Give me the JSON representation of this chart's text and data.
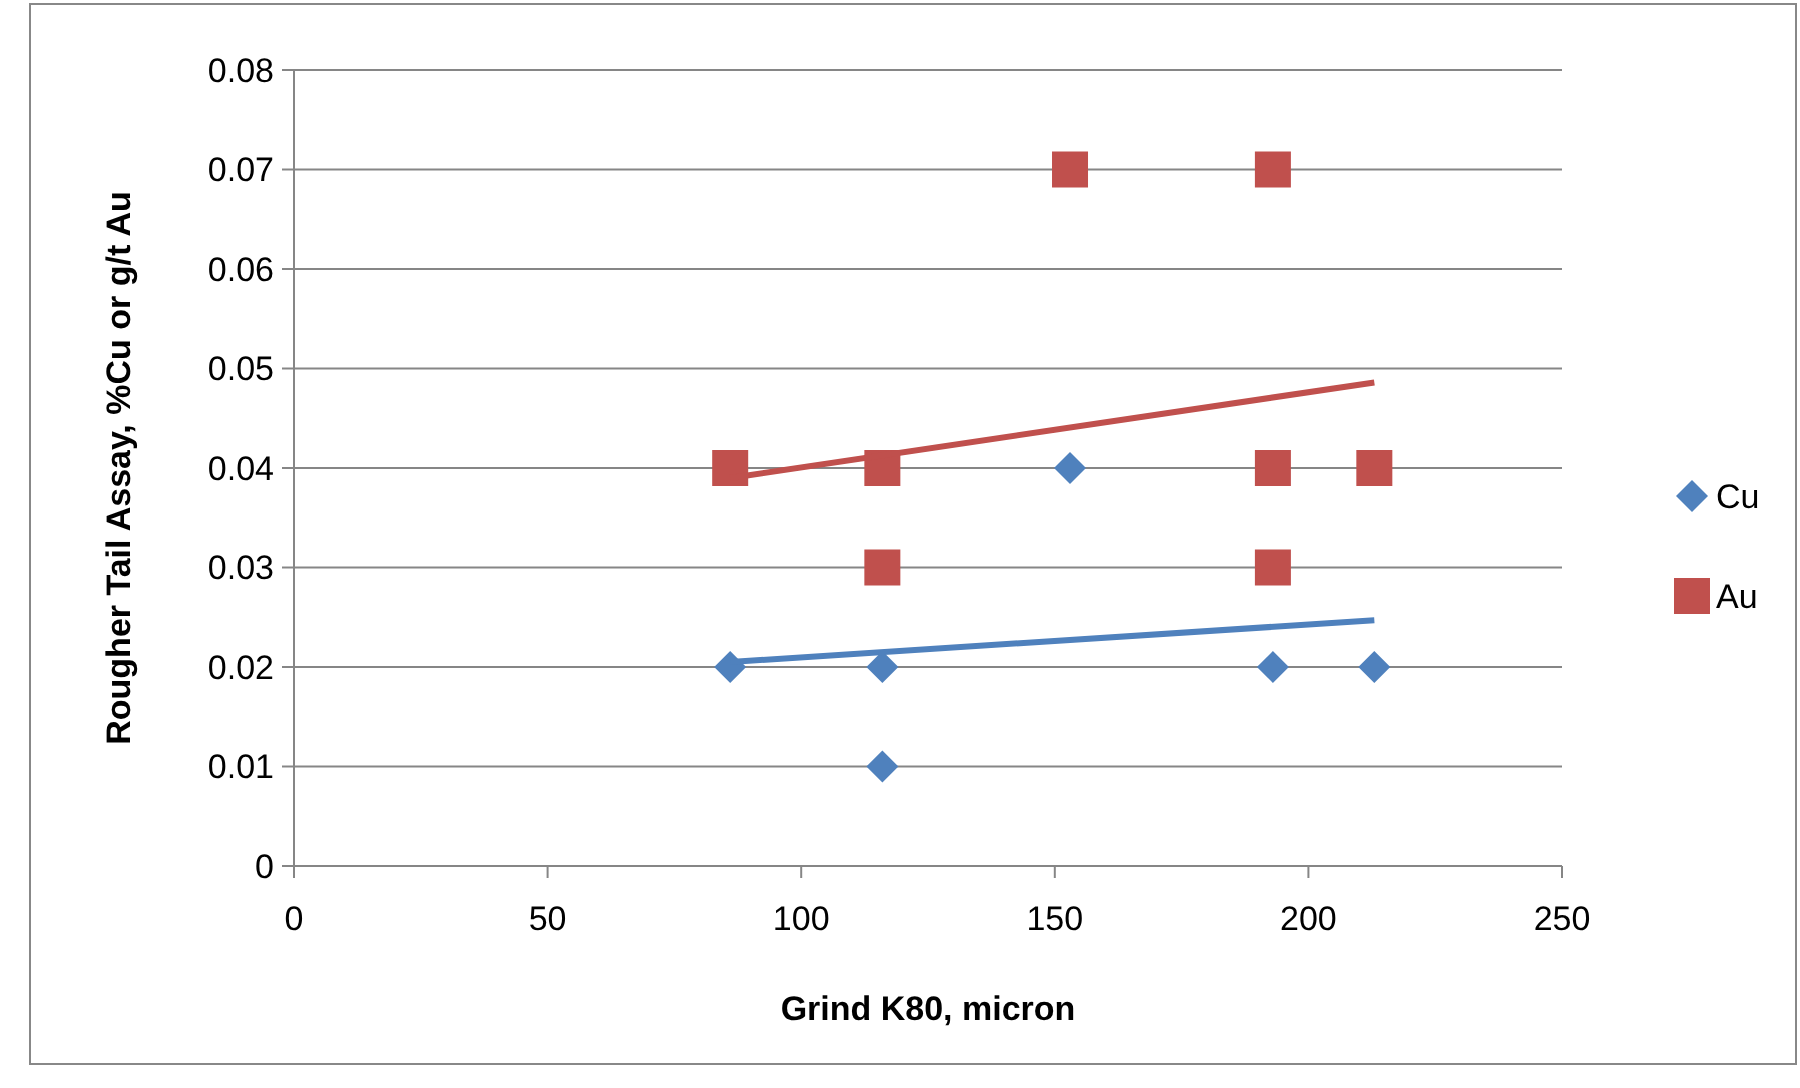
{
  "chart_data": {
    "type": "scatter",
    "xlabel": "Grind K80, micron",
    "ylabel": "Rougher Tail Assay, %Cu or g/t Au",
    "series": [
      {
        "name": "Cu",
        "color": "#4f81bd",
        "marker": "diamond",
        "x": [
          86,
          116,
          116,
          153,
          193,
          213
        ],
        "values": [
          0.02,
          0.02,
          0.01,
          0.04,
          0.02,
          0.02
        ]
      },
      {
        "name": "Au",
        "color": "#c0504d",
        "marker": "square",
        "x": [
          86,
          116,
          116,
          153,
          193,
          193,
          193,
          213
        ],
        "values": [
          0.04,
          0.04,
          0.03,
          0.07,
          0.07,
          0.04,
          0.03,
          0.04
        ]
      },
      {
        "type": "line",
        "color": "#4f81bd",
        "marker": "none",
        "x": [
          86,
          213
        ],
        "values": [
          0.0205,
          0.0247
        ]
      },
      {
        "type": "line",
        "color": "#c0504d",
        "marker": "none",
        "x": [
          86,
          213
        ],
        "values": [
          0.039,
          0.0486
        ]
      }
    ],
    "xlim": [
      0,
      250
    ],
    "xticks": [
      0,
      50,
      100,
      150,
      200,
      250
    ],
    "ylim": [
      0,
      0.08
    ],
    "yticks": [
      {
        "value": 0,
        "label": "0"
      },
      {
        "value": 0.01,
        "label": "0.01"
      },
      {
        "value": 0.02,
        "label": "0.02"
      },
      {
        "value": 0.03,
        "label": "0.03"
      },
      {
        "value": 0.04,
        "label": "0.04"
      },
      {
        "value": 0.05,
        "label": "0.05"
      },
      {
        "value": 0.06,
        "label": "0.06"
      },
      {
        "value": 0.07,
        "label": "0.07"
      },
      {
        "value": 0.08,
        "label": "0.08"
      }
    ],
    "grid": "y",
    "legend": "right"
  }
}
